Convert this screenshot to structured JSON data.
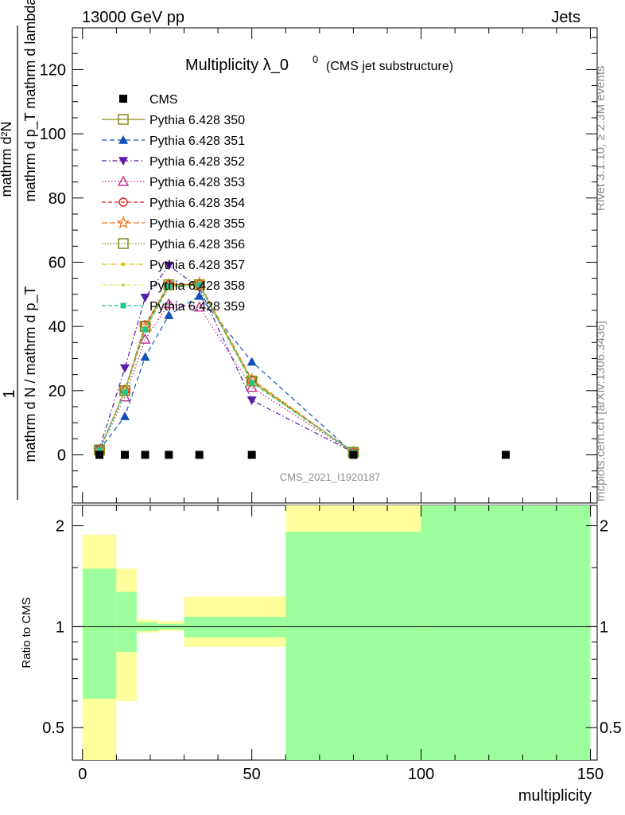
{
  "header": {
    "energy_label": "13000 GeV pp",
    "category_label": "Jets"
  },
  "side": {
    "rivet_label": "Rivet 3.1.10, ≥ 2.3M events",
    "site_label": "mcplots.cern.ch [arXiv:1306.3436]"
  },
  "chart_data": {
    "type": "line",
    "title_main": "Multiplicity λ_0",
    "title_sup": "0",
    "title_sub": "(CMS jet substructure)",
    "watermark": "CMS_2021_I1920187",
    "xlabel": "multiplicity",
    "ylabel_top": "1",
    "ylabel_bottom": "mathrm d N / mathrm d p_T mathrm d N / mathrm d p_T mathrm d lambda",
    "ylabel_upper_line": "mathrm d²N",
    "ylabel_lower_line": "mathrm d p_T mathrm d lambda",
    "ylabel_left_line": "mathrm d N / mathrm d p_T",
    "ratio_ylabel": "Ratio to CMS",
    "xlim": [
      -3,
      152
    ],
    "ylim": [
      -15,
      133
    ],
    "yticks": [
      0,
      20,
      40,
      60,
      80,
      100,
      120
    ],
    "xticks": [
      0,
      50,
      100,
      150
    ],
    "ratio_ylim": [
      0.4,
      2.3
    ],
    "ratio_yticks": [
      0.5,
      1,
      2
    ],
    "legend_position": "top-left",
    "x": [
      5,
      12.5,
      18.5,
      25.5,
      34.5,
      50,
      80
    ],
    "data": {
      "name": "CMS",
      "x": [
        5,
        12.5,
        18.5,
        25.5,
        34.5,
        50,
        80,
        125
      ],
      "y": [
        0,
        0,
        0,
        0,
        0,
        0,
        0,
        0
      ]
    },
    "series": [
      {
        "name": "Pythia 6.428 350",
        "color": "#8c8c1a",
        "marker": "square-open",
        "dash": "",
        "values": [
          1.5,
          20,
          40,
          53,
          53,
          23,
          0.8
        ]
      },
      {
        "name": "Pythia 6.428 351",
        "color": "#1250b8",
        "marker": "triangle-up",
        "dash": "6,4",
        "values": [
          1.5,
          12,
          30.5,
          43.5,
          49.5,
          29,
          0.5
        ]
      },
      {
        "name": "Pythia 6.428 352",
        "color": "#5a1ea8",
        "marker": "triangle-down",
        "dash": "6,3,1.5,3",
        "values": [
          2,
          27,
          49,
          59,
          52,
          17,
          0.8
        ]
      },
      {
        "name": "Pythia 6.428 353",
        "color": "#c0208c",
        "marker": "triangle-open",
        "dash": "1.5,2.5",
        "values": [
          1.5,
          18,
          36,
          47,
          46,
          21,
          0.7
        ]
      },
      {
        "name": "Pythia 6.428 354",
        "color": "#d81e1e",
        "marker": "circle-open",
        "dash": "5,3",
        "values": [
          1.5,
          20,
          40.5,
          53,
          53,
          23,
          0.8
        ]
      },
      {
        "name": "Pythia 6.428 355",
        "color": "#f07820",
        "marker": "star-open",
        "dash": "7,3",
        "values": [
          1.5,
          20,
          40,
          53,
          53.5,
          23.5,
          0.8
        ]
      },
      {
        "name": "Pythia 6.428 356",
        "color": "#7a8c1a",
        "marker": "square-open",
        "dash": "1.5,2",
        "values": [
          1.5,
          20,
          40,
          53,
          53,
          23,
          0.8
        ]
      },
      {
        "name": "Pythia 6.428 357",
        "color": "#d4c41e",
        "marker": "dot",
        "dash": "6,2,1.5,2",
        "values": [
          1.5,
          20,
          39.5,
          52.5,
          53,
          23,
          0.8
        ]
      },
      {
        "name": "Pythia 6.428 358",
        "color": "#c8d21e",
        "marker": "dot-small",
        "dash": "1,2",
        "values": [
          1.5,
          19.5,
          39,
          52,
          52.5,
          22.5,
          0.8
        ]
      },
      {
        "name": "Pythia 6.428 359",
        "color": "#1ec88c",
        "marker": "square-filled",
        "dash": "5,3",
        "values": [
          1.5,
          19.5,
          39,
          52.5,
          53,
          22.5,
          0.8
        ]
      }
    ],
    "ratio_bands": [
      {
        "x0": 0,
        "x1": 10,
        "green": [
          0.61,
          1.49
        ],
        "yellow": [
          0.3,
          1.88
        ]
      },
      {
        "x0": 10,
        "x1": 16,
        "green": [
          0.84,
          1.27
        ],
        "yellow": [
          0.6,
          1.49
        ]
      },
      {
        "x0": 16,
        "x1": 22,
        "green": [
          0.97,
          1.03
        ],
        "yellow": [
          0.96,
          1.05
        ]
      },
      {
        "x0": 22,
        "x1": 30,
        "green": [
          0.98,
          1.02
        ],
        "yellow": [
          0.97,
          1.04
        ]
      },
      {
        "x0": 30,
        "x1": 60,
        "green": [
          0.93,
          1.07
        ],
        "yellow": [
          0.87,
          1.23
        ]
      },
      {
        "x0": 60,
        "x1": 100,
        "green": [
          0.3,
          1.92
        ],
        "yellow": [
          0.3,
          2.4
        ]
      },
      {
        "x0": 100,
        "x1": 150,
        "green": [
          0.3,
          2.4
        ],
        "yellow": [
          0.3,
          2.4
        ]
      }
    ],
    "band_colors": {
      "green": "#9cfe9c",
      "yellow": "#fefe9c"
    }
  }
}
